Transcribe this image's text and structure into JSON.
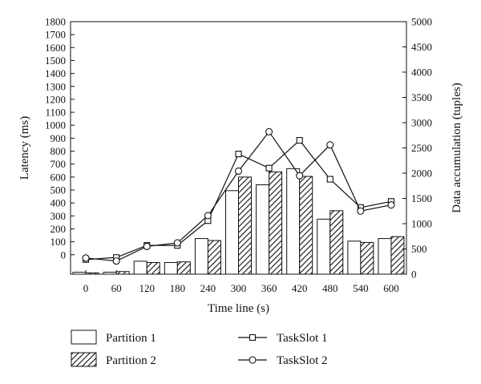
{
  "chart_data": {
    "type": "bar",
    "title": "",
    "xlabel": "Time line (s)",
    "ylabel": "Latency (ms)",
    "y2label": "Data accumulation (tuples)",
    "categories": [
      "0",
      "60",
      "120",
      "180",
      "240",
      "300",
      "360",
      "420",
      "480",
      "540",
      "600"
    ],
    "ylim": [
      -150,
      1800
    ],
    "y_ticks": [
      0,
      100,
      200,
      300,
      400,
      500,
      600,
      700,
      800,
      900,
      1000,
      1100,
      1200,
      1300,
      1400,
      1500,
      1600,
      1700,
      1800
    ],
    "y2lim": [
      0,
      5000
    ],
    "y2_ticks": [
      0,
      500,
      1000,
      1500,
      2000,
      2500,
      3000,
      3500,
      4000,
      4500,
      5000
    ],
    "series": [
      {
        "name": "Partition 1",
        "kind": "bar",
        "axis": "left",
        "pattern": "white",
        "values": [
          -135,
          -135,
          -50,
          -60,
          125,
          495,
          540,
          665,
          275,
          105,
          125
        ]
      },
      {
        "name": "Partition 2",
        "kind": "bar",
        "axis": "left",
        "pattern": "hatch",
        "values": [
          -140,
          -130,
          -60,
          -55,
          110,
          600,
          640,
          605,
          340,
          95,
          140
        ]
      },
      {
        "name": "TaskSlot 1",
        "kind": "line",
        "axis": "right",
        "marker": "square",
        "values": [
          290,
          330,
          570,
          570,
          1060,
          2380,
          2100,
          2650,
          1880,
          1320,
          1440
        ]
      },
      {
        "name": "TaskSlot 2",
        "kind": "line",
        "axis": "right",
        "marker": "circle",
        "values": [
          320,
          260,
          550,
          620,
          1160,
          2040,
          2820,
          1950,
          2560,
          1250,
          1370
        ]
      }
    ],
    "grid": false,
    "legend_position": "bottom"
  }
}
